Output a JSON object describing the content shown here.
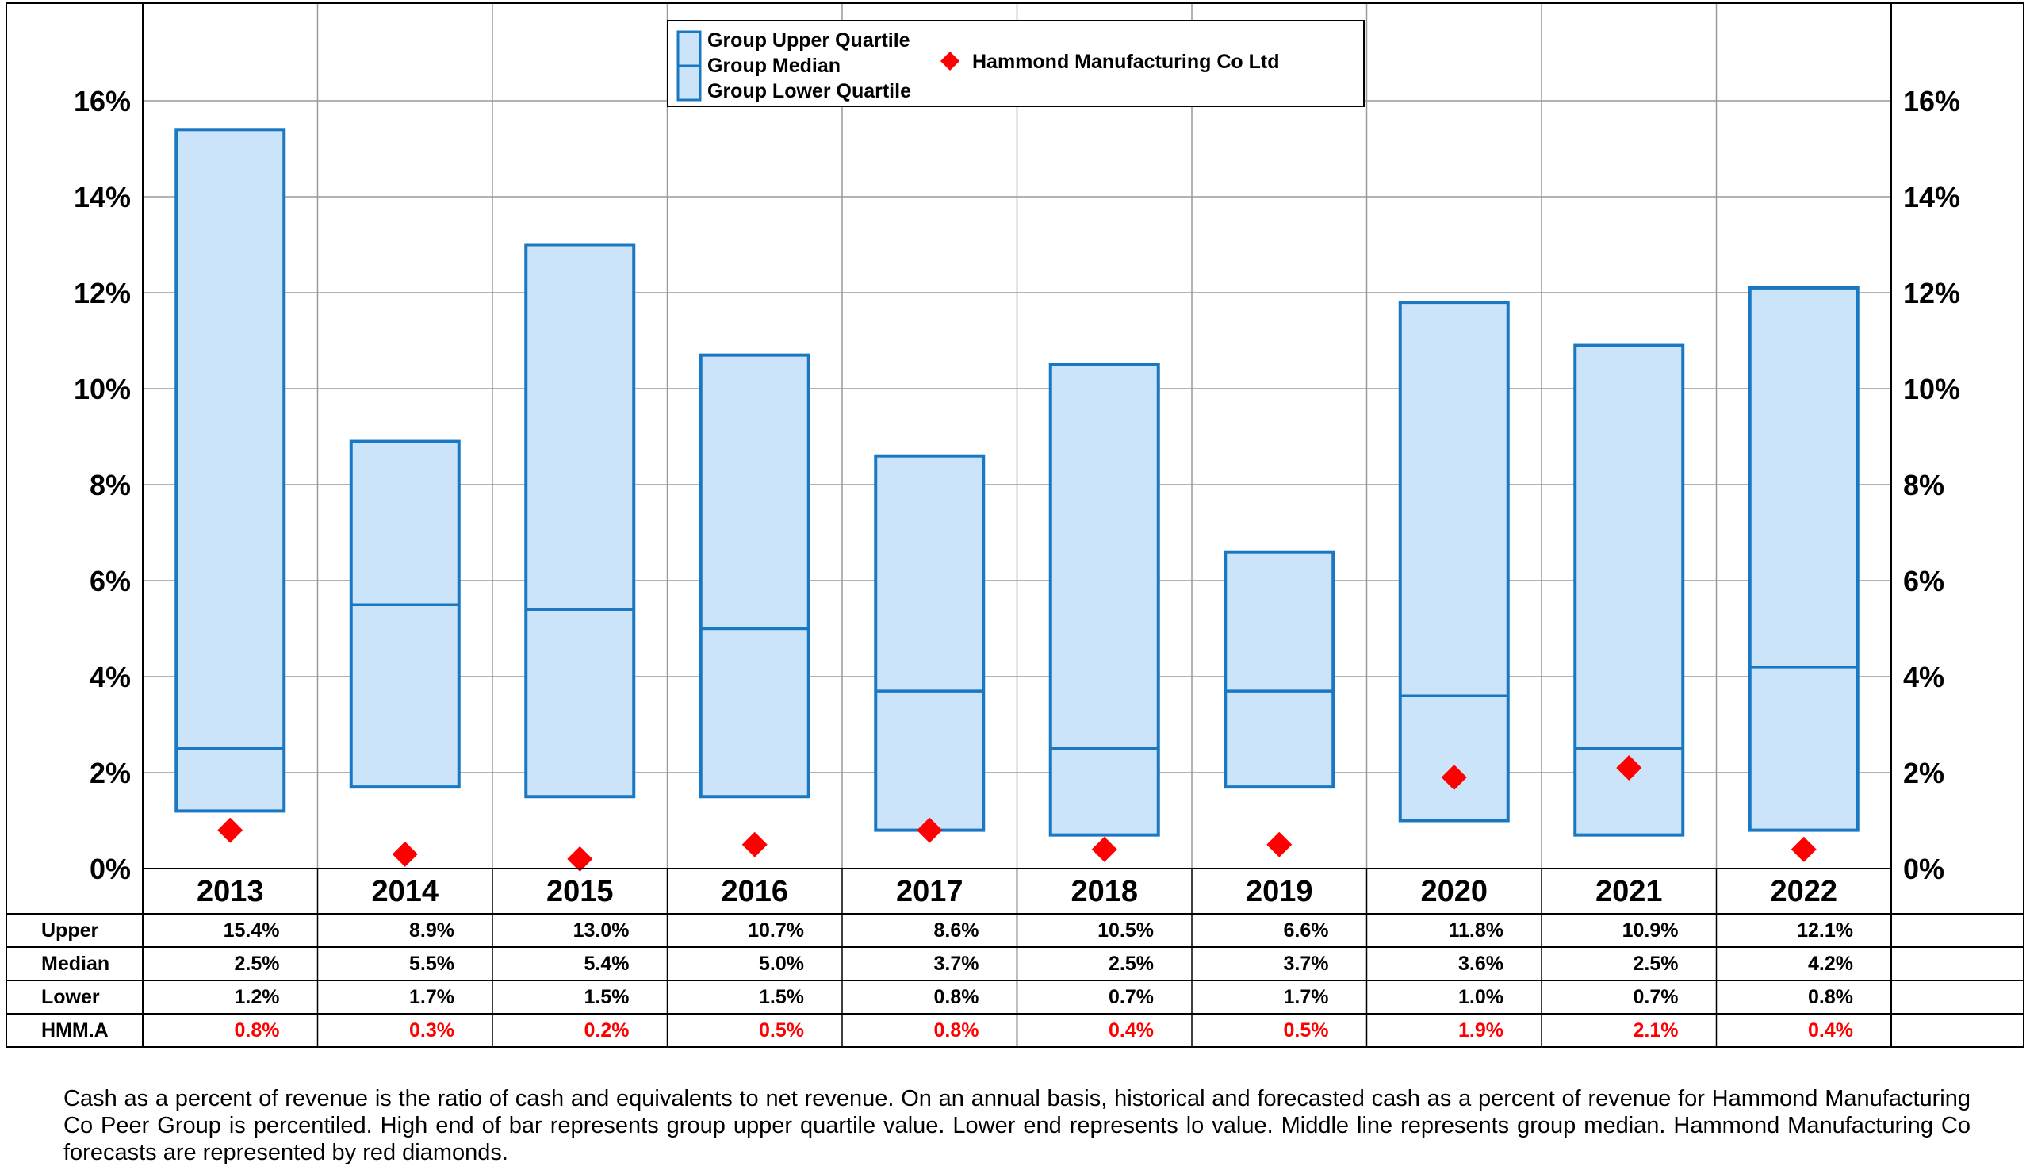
{
  "chart_data": {
    "type": "bar",
    "subtype": "floating-quartile-range-with-marker",
    "categories": [
      "2013",
      "2014",
      "2015",
      "2016",
      "2017",
      "2018",
      "2019",
      "2020",
      "2021",
      "2022"
    ],
    "series": [
      {
        "name": "Group Upper Quartile",
        "key": "upper",
        "values": [
          15.4,
          8.9,
          13.0,
          10.7,
          8.6,
          10.5,
          6.6,
          11.8,
          10.9,
          12.1
        ]
      },
      {
        "name": "Group Median",
        "key": "median",
        "values": [
          2.5,
          5.5,
          5.4,
          5.0,
          3.7,
          2.5,
          3.7,
          3.6,
          2.5,
          4.2
        ]
      },
      {
        "name": "Group Lower Quartile",
        "key": "lower",
        "values": [
          1.2,
          1.7,
          1.5,
          1.5,
          0.8,
          0.7,
          1.7,
          1.0,
          0.7,
          0.8
        ]
      },
      {
        "name": "Hammond Manufacturing Co Ltd",
        "key": "company",
        "values": [
          0.8,
          0.3,
          0.2,
          0.5,
          0.8,
          0.4,
          0.5,
          1.9,
          2.1,
          0.4
        ]
      }
    ],
    "ylim": [
      0,
      18
    ],
    "yticks": [
      0,
      2,
      4,
      6,
      8,
      10,
      12,
      14,
      16
    ],
    "ytick_labels": [
      "0%",
      "2%",
      "4%",
      "6%",
      "8%",
      "10%",
      "12%",
      "14%",
      "16%"
    ],
    "grid": true,
    "legend_position": "top-center",
    "table": {
      "row_labels": [
        "Upper",
        "Median",
        "Lower",
        "HMM.A"
      ],
      "rows": [
        [
          "15.4%",
          "8.9%",
          "13.0%",
          "10.7%",
          "8.6%",
          "10.5%",
          "6.6%",
          "11.8%",
          "10.9%",
          "12.1%"
        ],
        [
          "2.5%",
          "5.5%",
          "5.4%",
          "5.0%",
          "3.7%",
          "2.5%",
          "3.7%",
          "3.6%",
          "2.5%",
          "4.2%"
        ],
        [
          "1.2%",
          "1.7%",
          "1.5%",
          "1.5%",
          "0.8%",
          "0.7%",
          "1.7%",
          "1.0%",
          "0.7%",
          "0.8%"
        ],
        [
          "0.8%",
          "0.3%",
          "0.2%",
          "0.5%",
          "0.8%",
          "0.4%",
          "0.5%",
          "1.9%",
          "2.1%",
          "0.4%"
        ]
      ]
    }
  },
  "legend": {
    "upper": "Group Upper Quartile",
    "median": "Group Median",
    "lower": "Group Lower Quartile",
    "company": "Hammond Manufacturing Co Ltd"
  },
  "colors": {
    "box_fill": "#cce4fa",
    "box_stroke": "#1a78c2",
    "marker": "#ff0000",
    "grid": "#9a9a9a",
    "frame": "#000000",
    "table_red_text": "#ff0000"
  },
  "caption": "Cash as a percent of revenue is the ratio of cash and equivalents to net revenue.  On an annual basis, historical and forecasted cash as a percent of revenue for Hammond Manufacturing Co Peer Group is percentiled.  High end of bar represents group upper quartile value.  Lower end represents lo value.  Middle line represents group median.  Hammond Manufacturing Co forecasts are represented by red diamonds."
}
